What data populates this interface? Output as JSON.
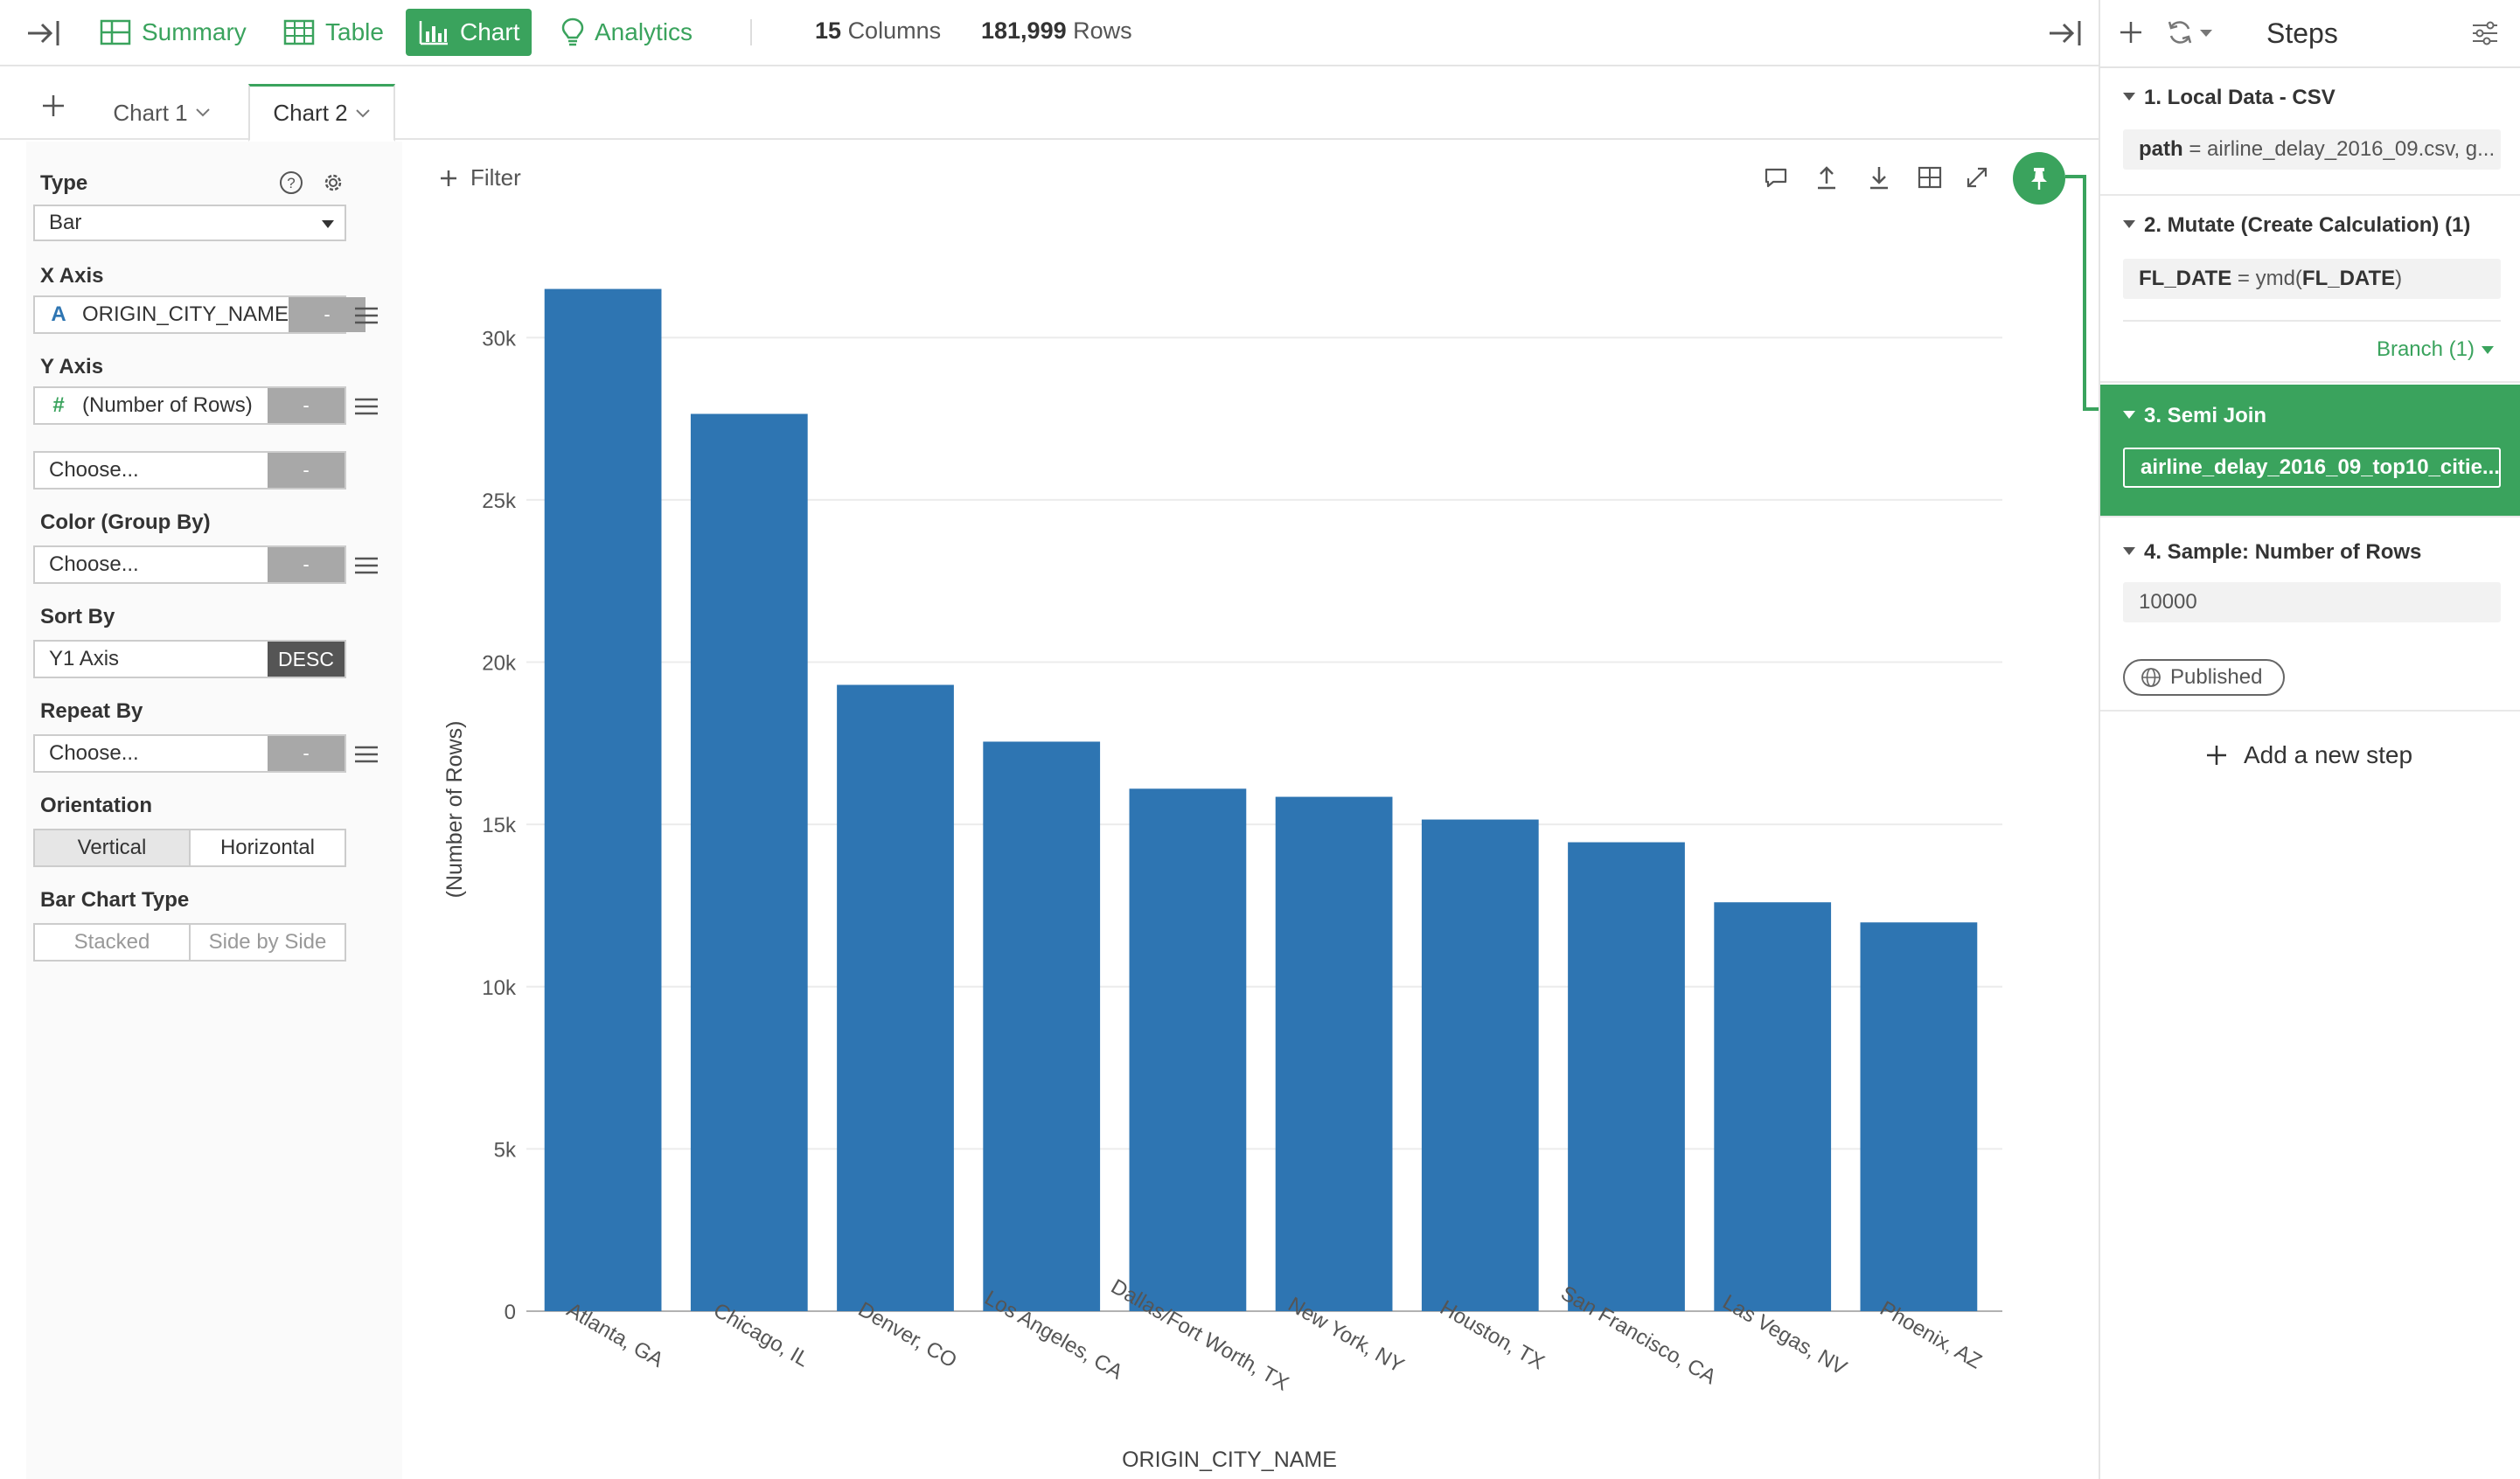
{
  "topbar": {
    "tabs": [
      {
        "label": "Summary",
        "icon": "summary-grid-icon"
      },
      {
        "label": "Table",
        "icon": "table-icon"
      },
      {
        "label": "Chart",
        "icon": "bar-chart-icon",
        "active": true
      },
      {
        "label": "Analytics",
        "icon": "lightbulb-icon"
      }
    ],
    "columns_count": "15",
    "columns_label": "Columns",
    "rows_count": "181,999",
    "rows_label": "Rows"
  },
  "chart_tabs": [
    {
      "label": "Chart 1",
      "active": false
    },
    {
      "label": "Chart 2",
      "active": true
    }
  ],
  "config": {
    "type_label": "Type",
    "type_value": "Bar",
    "x_axis_label": "X Axis",
    "x_axis_type": "A",
    "x_axis_value": "ORIGIN_CITY_NAME",
    "y_axis_label": "Y Axis",
    "y_axis_type": "#",
    "y_axis_value": "(Number of Rows)",
    "y2_placeholder": "Choose...",
    "minus": "-",
    "color_label": "Color (Group By)",
    "color_placeholder": "Choose...",
    "sort_label": "Sort By",
    "sort_value": "Y1 Axis",
    "sort_order": "DESC",
    "repeat_label": "Repeat By",
    "repeat_placeholder": "Choose...",
    "orientation_label": "Orientation",
    "orientation_options": [
      "Vertical",
      "Horizontal"
    ],
    "orientation_selected": "Vertical",
    "bar_type_label": "Bar Chart Type",
    "bar_type_options": [
      "Stacked",
      "Side by Side"
    ]
  },
  "chart_toolbar": {
    "filter_label": "Filter"
  },
  "chart_data": {
    "type": "bar",
    "categories": [
      "Atlanta, GA",
      "Chicago, IL",
      "Denver, CO",
      "Los Angeles, CA",
      "Dallas/Fort Worth, TX",
      "New York, NY",
      "Houston, TX",
      "San Francisco, CA",
      "Las Vegas, NV",
      "Phoenix, AZ"
    ],
    "values": [
      31500,
      27650,
      19300,
      17550,
      16100,
      15850,
      15150,
      14450,
      12600,
      11980
    ],
    "xlabel": "ORIGIN_CITY_NAME",
    "ylabel": "(Number of Rows)",
    "ylim": [
      0,
      32000
    ],
    "yticks": [
      0,
      5000,
      10000,
      15000,
      20000,
      25000,
      30000
    ],
    "ytick_labels": [
      "0",
      "5k",
      "10k",
      "15k",
      "20k",
      "25k",
      "30k"
    ],
    "grid": true,
    "bar_color": "#2e75b2"
  },
  "steps": {
    "title": "Steps",
    "items": [
      {
        "title": "1. Local Data - CSV",
        "param_name": "path",
        "param_eq": " = ",
        "param_value": "airline_delay_2016_09.csv, g..."
      },
      {
        "title": "2. Mutate (Create Calculation) (1)",
        "param_name": "FL_DATE",
        "param_eq": " = ymd(",
        "param_value": "FL_DATE",
        "param_close": ")"
      },
      {
        "title": "3. Semi Join",
        "param_value": "airline_delay_2016_09_top10_citie...",
        "active": true
      },
      {
        "title": "4. Sample: Number of Rows",
        "param_value": "10000"
      }
    ],
    "branch_label": "Branch (1)",
    "published_label": "Published",
    "add_step_label": "Add a new step"
  },
  "colors": {
    "accent": "#3aa35d",
    "bar": "#2e75b2"
  }
}
